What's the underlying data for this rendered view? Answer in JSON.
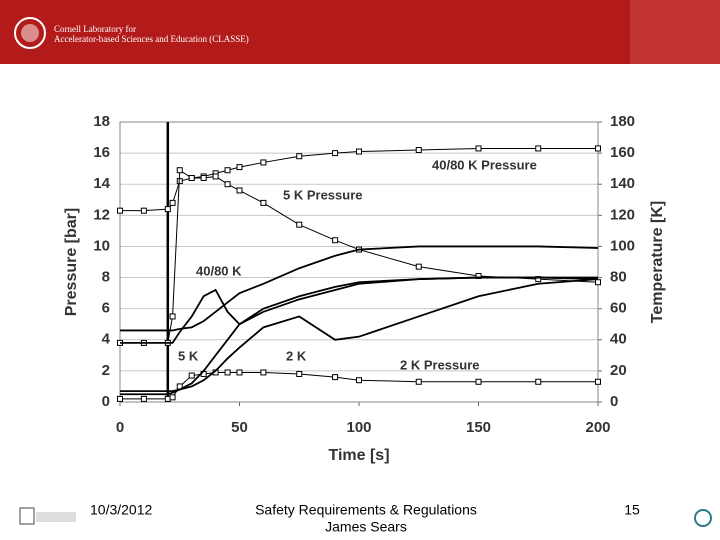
{
  "header": {
    "line1": "Cornell Laboratory for",
    "line2": "Accelerator-based Sciences and Education (CLASSE)"
  },
  "footer": {
    "date": "10/3/2012",
    "title": "Safety Requirements & Regulations",
    "author": "James Sears",
    "page": "15"
  },
  "chart_data": {
    "type": "line",
    "xlabel": "Time [s]",
    "ylabel": "Pressure [bar]",
    "y2label": "Temperature [K]",
    "x": [
      0,
      10,
      20,
      22,
      25,
      30,
      35,
      40,
      45,
      50,
      60,
      75,
      90,
      100,
      125,
      150,
      175,
      200
    ],
    "xlim": [
      0,
      200
    ],
    "xticks": [
      0,
      50,
      100,
      150,
      200
    ],
    "ylim": [
      0,
      18
    ],
    "yticks": [
      0,
      2,
      4,
      6,
      8,
      10,
      12,
      14,
      16,
      18
    ],
    "y2lim": [
      0,
      180
    ],
    "y2ticks": [
      0,
      20,
      40,
      60,
      80,
      100,
      120,
      140,
      160,
      180
    ],
    "grid": true,
    "event_x": 20,
    "series": [
      {
        "name": "40/80 K Pressure",
        "color": "#000000",
        "marker": "square",
        "values": [
          12.3,
          12.3,
          12.4,
          12.8,
          14.2,
          14.4,
          14.5,
          14.7,
          14.9,
          15.1,
          15.4,
          15.8,
          16.0,
          16.1,
          16.2,
          16.3,
          16.3,
          16.3
        ]
      },
      {
        "name": "5 K Pressure",
        "color": "#000000",
        "marker": "square",
        "values": [
          3.8,
          3.8,
          3.8,
          5.5,
          14.9,
          14.4,
          14.4,
          14.5,
          14.0,
          13.6,
          12.8,
          11.4,
          10.4,
          9.8,
          8.7,
          8.1,
          7.9,
          7.7
        ]
      },
      {
        "name": "2 K Pressure",
        "color": "#000000",
        "marker": "square",
        "values": [
          0.2,
          0.2,
          0.2,
          0.3,
          1.0,
          1.7,
          1.8,
          1.9,
          1.9,
          1.9,
          1.9,
          1.8,
          1.6,
          1.4,
          1.3,
          1.3,
          1.3,
          1.3
        ]
      },
      {
        "color": "#000000",
        "axis": "y2",
        "values": [
          46,
          46,
          46,
          46,
          47,
          48,
          52,
          58,
          64,
          70,
          76,
          86,
          94,
          98,
          100,
          100,
          100,
          99
        ]
      },
      {
        "name": "40/80 K",
        "color": "#000000",
        "axis": "y2",
        "values": [
          38,
          38,
          38,
          38,
          45,
          55,
          68,
          72,
          58,
          50,
          60,
          68,
          74,
          77,
          79,
          80,
          80,
          79
        ]
      },
      {
        "name": "5 K",
        "color": "#000000",
        "axis": "y2",
        "values": [
          5,
          5,
          5,
          6,
          8,
          12,
          20,
          30,
          40,
          50,
          58,
          66,
          72,
          76,
          79,
          80,
          80,
          80
        ]
      },
      {
        "name": "2 K",
        "color": "#000000",
        "axis": "y2",
        "values": [
          7,
          7,
          7,
          7,
          8,
          10,
          14,
          20,
          28,
          35,
          48,
          55,
          40,
          42,
          55,
          68,
          76,
          79
        ]
      }
    ]
  }
}
